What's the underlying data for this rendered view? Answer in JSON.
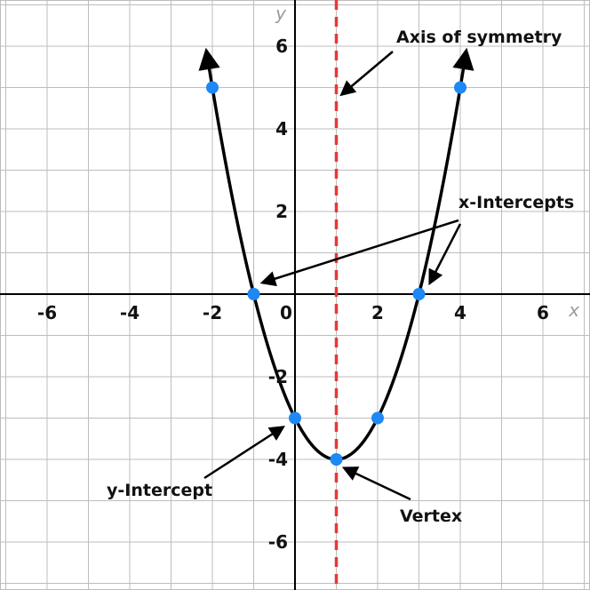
{
  "chart_data": {
    "type": "line",
    "title": "",
    "xlabel": "x",
    "ylabel": "y",
    "xlim": [
      -7,
      7
    ],
    "ylim": [
      -7,
      7
    ],
    "grid": true,
    "x_tick_labels": [
      "-6",
      "-4",
      "-2",
      "0",
      "2",
      "4",
      "6"
    ],
    "x_tick_values": [
      -6,
      -4,
      -2,
      0,
      2,
      4,
      6
    ],
    "y_tick_labels": [
      "6",
      "4",
      "2",
      "-2",
      "-4",
      "-6"
    ],
    "y_tick_values": [
      6,
      4,
      2,
      -2,
      -4,
      -6
    ],
    "curve": {
      "equation": "y = (x - 1)^2 - 4",
      "x_range": [
        -2,
        4
      ],
      "points": [
        {
          "x": -2,
          "y": 5
        },
        {
          "x": -1,
          "y": 0
        },
        {
          "x": 0,
          "y": -3
        },
        {
          "x": 1,
          "y": -4
        },
        {
          "x": 2,
          "y": -3
        },
        {
          "x": 3,
          "y": 0
        },
        {
          "x": 4,
          "y": 5
        }
      ]
    },
    "axis_of_symmetry_x": 1,
    "annotations": {
      "axis_of_symmetry": "Axis of symmetry",
      "x_intercepts": "x-Intercepts",
      "y_intercept": "y-Intercept",
      "vertex": "Vertex"
    }
  },
  "colors": {
    "grid": "#bdbdbd",
    "axis": "#000000",
    "curve": "#000000",
    "point": "#1e88f5",
    "symmetry_line": "#e53935",
    "axis_name": "#9a9a9a"
  }
}
